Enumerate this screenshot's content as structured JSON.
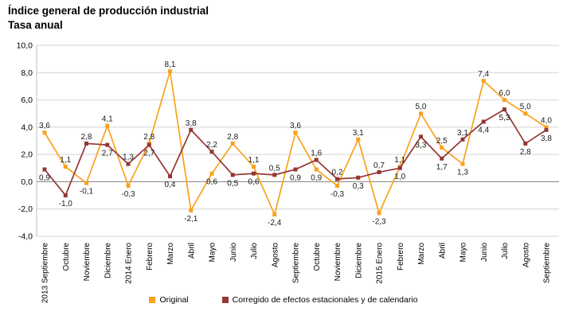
{
  "title": "Índice general de producción industrial",
  "subtitle": "Tasa anual",
  "chart_data": {
    "type": "line",
    "title": "Índice general de producción industrial",
    "subtitle": "Tasa anual",
    "categories": [
      "2013 Septiembre",
      "Octubre",
      "Noviembre",
      "Diciembre",
      "2014 Enero",
      "Febrero",
      "Marzo",
      "Abril",
      "Mayo",
      "Junio",
      "Julio",
      "Agosto",
      "Septiembre",
      "Octubre",
      "Noviembre",
      "Diciembre",
      "2015 Enero",
      "Febrero",
      "Marzo",
      "Abril",
      "Mayo",
      "Junio",
      "Julio",
      "Agosto",
      "Septiembre"
    ],
    "series": [
      {
        "name": "Original",
        "color": "#F9A21B",
        "values": [
          3.6,
          1.1,
          -0.1,
          4.1,
          -0.3,
          2.8,
          8.1,
          -2.1,
          0.6,
          2.8,
          1.1,
          -2.4,
          3.6,
          0.9,
          -0.3,
          3.1,
          -2.3,
          1.1,
          5.0,
          2.5,
          1.3,
          7.4,
          6.0,
          5.0,
          4.0
        ]
      },
      {
        "name": "Corregido de efectos estacionales y de calendario",
        "color": "#943634",
        "values": [
          0.9,
          -1.0,
          2.8,
          2.7,
          1.3,
          2.7,
          0.4,
          3.8,
          2.2,
          0.5,
          0.6,
          0.5,
          0.9,
          1.6,
          0.2,
          0.3,
          0.7,
          1.0,
          3.3,
          1.7,
          3.1,
          4.4,
          5.3,
          2.8,
          3.8
        ]
      }
    ],
    "ylim": [
      -4,
      10
    ],
    "ytick_step": 2,
    "ytick_labels": [
      "-4,0",
      "-2,0",
      "0,0",
      "2,0",
      "4,0",
      "6,0",
      "8,0",
      "10,0"
    ],
    "grid": true,
    "legend_position": "bottom",
    "decimal_separator": ",",
    "data_labels": true
  },
  "colors": {
    "grid": "#D4D4D4",
    "zero_line": "#808080",
    "axis_line": "#BFBFBF",
    "label_text": "#1a1a1a"
  }
}
